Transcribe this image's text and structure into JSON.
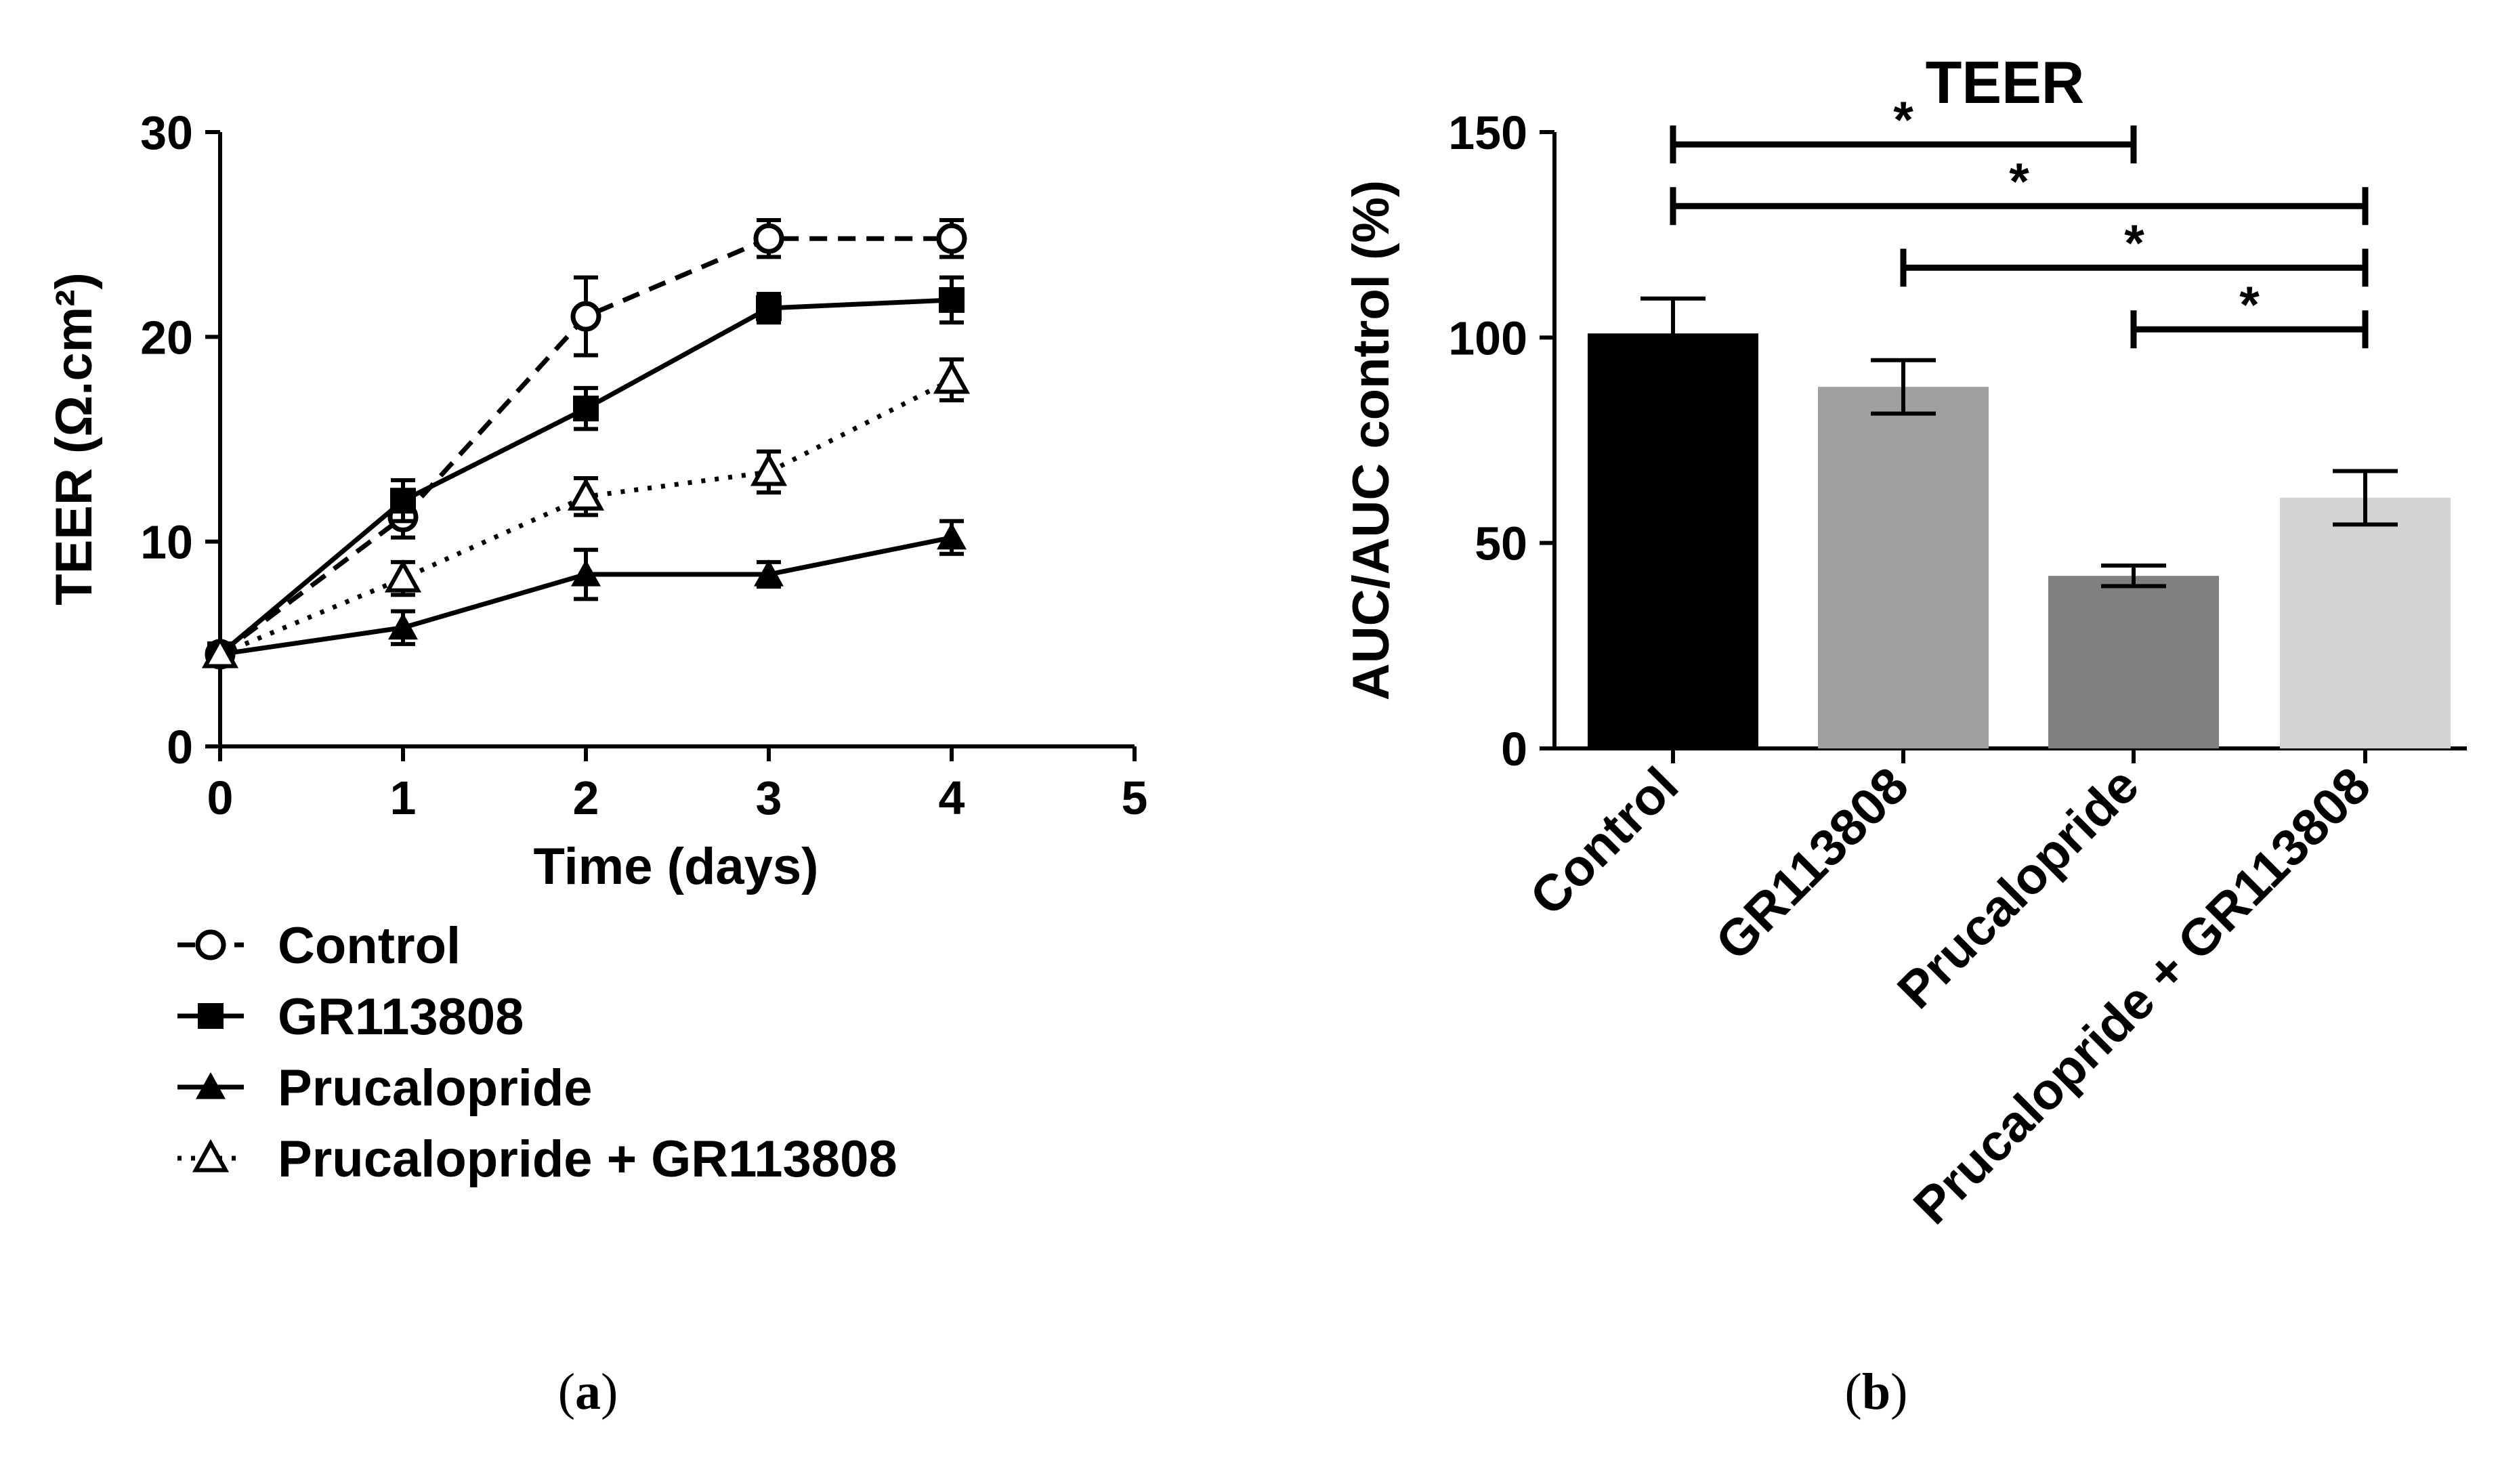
{
  "chart_data": [
    {
      "type": "line",
      "panel": "a",
      "caption": "a",
      "xlabel": "Time (days)",
      "ylabel": "TEER (Ω.cm²)",
      "xlim": [
        0,
        5
      ],
      "ylim": [
        0,
        30
      ],
      "xticks": [
        0,
        1,
        2,
        3,
        4,
        5
      ],
      "yticks": [
        0,
        10,
        20,
        30
      ],
      "x": [
        0,
        1,
        2,
        3,
        4
      ],
      "series": [
        {
          "name": "Control",
          "values": [
            4.5,
            11.2,
            21.0,
            24.8,
            24.8
          ],
          "errors": [
            0.4,
            1.0,
            1.9,
            0.9,
            0.9
          ],
          "line": "dashed",
          "marker": "open-circle"
        },
        {
          "name": "GR113808",
          "values": [
            4.5,
            12.0,
            16.5,
            21.4,
            21.8
          ],
          "errors": [
            0.4,
            1.0,
            1.0,
            0.7,
            1.1
          ],
          "line": "solid",
          "marker": "filled-square"
        },
        {
          "name": "Prucalopride",
          "values": [
            4.5,
            5.8,
            8.4,
            8.4,
            10.2
          ],
          "errors": [
            0.4,
            0.8,
            1.2,
            0.6,
            0.8
          ],
          "line": "solid",
          "marker": "filled-triangle"
        },
        {
          "name": "Prucalopride + GR113808",
          "values": [
            4.5,
            8.2,
            12.2,
            13.4,
            17.9
          ],
          "errors": [
            0.4,
            0.8,
            0.9,
            1.0,
            1.0
          ],
          "line": "dotted",
          "marker": "open-triangle"
        }
      ]
    },
    {
      "type": "bar",
      "panel": "b",
      "caption": "b",
      "title": "TEER",
      "ylabel": "AUC/AUC control (%)",
      "ylim": [
        0,
        150
      ],
      "yticks": [
        0,
        50,
        100,
        150
      ],
      "categories": [
        "Control",
        "GR113808",
        "Prucalopride",
        "Prucalopride + GR113808"
      ],
      "values": [
        101,
        88,
        42,
        61
      ],
      "errors": [
        8.5,
        6.5,
        2.5,
        6.5
      ],
      "colors": [
        "#000000",
        "#a0a0a0",
        "#808080",
        "#d4d4d4"
      ],
      "significance": [
        {
          "from": 0,
          "to": 2,
          "value": 147,
          "label": "*"
        },
        {
          "from": 0,
          "to": 3,
          "value": 132,
          "label": "*"
        },
        {
          "from": 1,
          "to": 3,
          "value": 117,
          "label": "*"
        },
        {
          "from": 2,
          "to": 3,
          "value": 102,
          "label": "*"
        }
      ]
    }
  ]
}
